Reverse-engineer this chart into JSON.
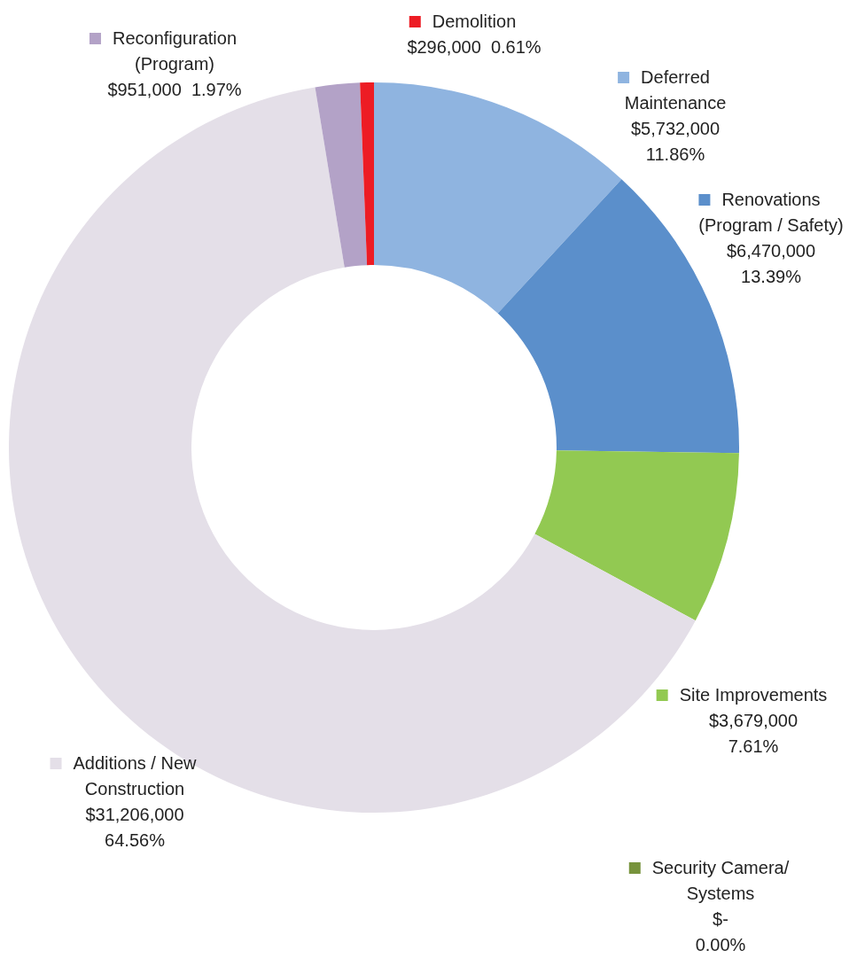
{
  "chart_data": {
    "type": "donut",
    "categories": [
      "Deferred Maintenance",
      "Renovations (Program / Safety)",
      "Site Improvements",
      "Security Camera/ Systems",
      "Additions / New Construction",
      "Reconfiguration (Program)",
      "Demolition"
    ],
    "values": [
      5732000,
      6470000,
      3679000,
      0,
      31206000,
      951000,
      296000
    ],
    "colors": [
      "#8fb4e0",
      "#5b8fcb",
      "#92c952",
      "#77933c",
      "#e4dfe8",
      "#b3a2c7",
      "#ed1c24"
    ],
    "legend": "right",
    "value_labels": [
      "$5,732,000  11.86%",
      "$6,470,000  13.39%",
      "$3,679,000  7.61%",
      "$-  0.00%",
      "$31,206,000  64.56%",
      "$951,000  1.97%",
      "$296,000  0.61%"
    ]
  }
}
